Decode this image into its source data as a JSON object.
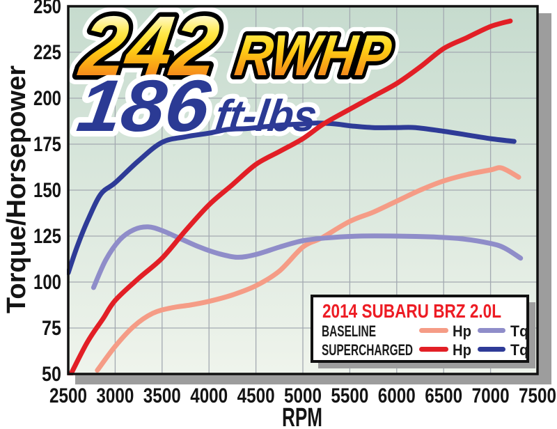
{
  "callouts": {
    "hp_value": "242",
    "hp_unit": "RWHP",
    "tq_value": "186",
    "tq_unit": "ft-lbs"
  },
  "axes": {
    "x_label": "RPM",
    "y_label": "Torque/Horsepower",
    "x_ticks": [
      2500,
      3000,
      3500,
      4000,
      4500,
      5000,
      5500,
      6000,
      6500,
      7000,
      7500
    ],
    "y_ticks": [
      250,
      225,
      200,
      175,
      150,
      125,
      100,
      75,
      50
    ]
  },
  "legend": {
    "title": "2014 SUBARU BRZ 2.0L",
    "rows": [
      {
        "label": "BASELINE",
        "hp": "Hp",
        "tq": "Tq"
      },
      {
        "label": "SUPERCHARGED",
        "hp": "Hp",
        "tq": "Tq"
      }
    ]
  },
  "colors": {
    "legend_title_red": "#ed1c24",
    "callout_blue": "#2b3a94",
    "title_gradient_top": "#fffdf0",
    "title_gradient_mid": "#ffd216",
    "title_gradient_bottom": "#f5841f",
    "plot_bg_top": "#c6dbce",
    "plot_bg_bottom": "#eff4ec",
    "gridline": "#a3a9b1",
    "plot_border": "#111111",
    "drop_shadow": "#9d9d9d"
  },
  "chart_data": {
    "type": "line",
    "title": "2014 SUBARU BRZ 2.0L dyno: baseline vs supercharged",
    "xlabel": "RPM",
    "ylabel": "Torque/Horsepower",
    "xlim": [
      2500,
      7500
    ],
    "ylim": [
      50,
      250
    ],
    "x_tick_step": 500,
    "y_tick_step": 25,
    "grid": true,
    "legend_position": "bottom-right",
    "annotations": [
      {
        "text": "242 RWHP",
        "meaning": "peak supercharged horsepower"
      },
      {
        "text": "186 ft-lbs",
        "meaning": "peak supercharged torque"
      }
    ],
    "series": [
      {
        "name": "BASELINE Hp",
        "color": "#f59c86",
        "points": [
          [
            2810,
            52
          ],
          [
            3000,
            65
          ],
          [
            3200,
            76
          ],
          [
            3400,
            83
          ],
          [
            3600,
            86
          ],
          [
            3800,
            87.5
          ],
          [
            4000,
            89.5
          ],
          [
            4250,
            93
          ],
          [
            4500,
            98
          ],
          [
            4750,
            106
          ],
          [
            5000,
            119
          ],
          [
            5200,
            124
          ],
          [
            5500,
            133
          ],
          [
            5750,
            138
          ],
          [
            6000,
            144
          ],
          [
            6250,
            150
          ],
          [
            6500,
            155
          ],
          [
            6750,
            158.5
          ],
          [
            7000,
            161
          ],
          [
            7120,
            162
          ],
          [
            7300,
            157
          ]
        ]
      },
      {
        "name": "BASELINE Tq",
        "color": "#8f8dc9",
        "points": [
          [
            2770,
            97
          ],
          [
            2900,
            112
          ],
          [
            3050,
            123
          ],
          [
            3200,
            128.5
          ],
          [
            3350,
            130
          ],
          [
            3500,
            128
          ],
          [
            3700,
            123.5
          ],
          [
            3900,
            119
          ],
          [
            4100,
            115.5
          ],
          [
            4300,
            113.5
          ],
          [
            4500,
            115
          ],
          [
            4750,
            119
          ],
          [
            5000,
            122.5
          ],
          [
            5250,
            124
          ],
          [
            5600,
            125
          ],
          [
            6000,
            125
          ],
          [
            6400,
            124.5
          ],
          [
            6700,
            123.5
          ],
          [
            7000,
            121
          ],
          [
            7150,
            118.5
          ],
          [
            7320,
            113
          ]
        ]
      },
      {
        "name": "SUPERCHARGED Tq",
        "color": "#2e3b97",
        "points": [
          [
            2500,
            105
          ],
          [
            2600,
            120
          ],
          [
            2720,
            135
          ],
          [
            2850,
            148
          ],
          [
            3000,
            154
          ],
          [
            3250,
            166
          ],
          [
            3500,
            176
          ],
          [
            3750,
            179
          ],
          [
            4000,
            181
          ],
          [
            4200,
            183
          ],
          [
            4400,
            183.5
          ],
          [
            4600,
            184.5
          ],
          [
            4800,
            185.5
          ],
          [
            5000,
            186
          ],
          [
            5150,
            186.5
          ],
          [
            5350,
            186
          ],
          [
            5500,
            185
          ],
          [
            5750,
            184
          ],
          [
            6000,
            184
          ],
          [
            6200,
            184
          ],
          [
            6500,
            182
          ],
          [
            6750,
            180
          ],
          [
            7000,
            178
          ],
          [
            7250,
            176.5
          ]
        ]
      },
      {
        "name": "SUPERCHARGED Hp",
        "color": "#e21f26",
        "points": [
          [
            2510,
            48
          ],
          [
            2700,
            67
          ],
          [
            2870,
            80
          ],
          [
            3000,
            90
          ],
          [
            3250,
            102
          ],
          [
            3500,
            113
          ],
          [
            3750,
            128
          ],
          [
            4000,
            142
          ],
          [
            4250,
            153
          ],
          [
            4500,
            164
          ],
          [
            4750,
            171
          ],
          [
            5000,
            178
          ],
          [
            5220,
            186
          ],
          [
            5500,
            194
          ],
          [
            5750,
            201
          ],
          [
            6000,
            208
          ],
          [
            6250,
            217
          ],
          [
            6500,
            227
          ],
          [
            6750,
            233
          ],
          [
            7000,
            239
          ],
          [
            7210,
            242
          ]
        ]
      }
    ]
  }
}
